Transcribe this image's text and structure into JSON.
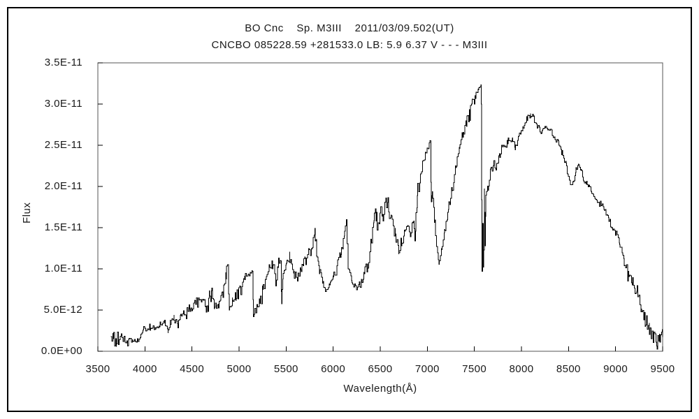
{
  "chart_data": {
    "type": "line",
    "title": "BO Cnc    Sp. M3III    2011/03/09.502(UT)",
    "subtitle": "CNCBO 085228.59 +281533.0 LB: 5.9 6.37 V - - - M3III",
    "xlabel": "Wavelength(Å)",
    "ylabel": "Flux",
    "xlim": [
      3500,
      9500
    ],
    "ylim_e11": [
      0,
      3.5
    ],
    "grid": false,
    "legend": "none",
    "line_color": "#000000",
    "x_ticks": [
      3500,
      4000,
      4500,
      5000,
      5500,
      6000,
      6500,
      7000,
      7500,
      8000,
      8500,
      9000,
      9500
    ],
    "y_ticks": [
      {
        "value_e11": 0.0,
        "label": "0.0E+00"
      },
      {
        "value_e11": 0.5,
        "label": "5.0E-12"
      },
      {
        "value_e11": 1.0,
        "label": "1.0E-11"
      },
      {
        "value_e11": 1.5,
        "label": "1.5E-11"
      },
      {
        "value_e11": 2.0,
        "label": "2.0E-11"
      },
      {
        "value_e11": 2.5,
        "label": "2.5E-11"
      },
      {
        "value_e11": 3.0,
        "label": "3.0E-11"
      },
      {
        "value_e11": 3.5,
        "label": "3.5E-11"
      }
    ],
    "flux_unit_note": "anchor flux and noise amplitude in units of 1e-11, as labeled on the y axis",
    "spectrum_anchors_e11": [
      [
        3638,
        0.16,
        0.14
      ],
      [
        3665,
        0.16,
        0.12
      ],
      [
        3695,
        0.13,
        0.09
      ],
      [
        3725,
        0.16,
        0.09
      ],
      [
        3755,
        0.14,
        0.07
      ],
      [
        3790,
        0.12,
        0.05
      ],
      [
        3815,
        0.08,
        0.06
      ],
      [
        3830,
        0.12,
        0.04
      ],
      [
        3870,
        0.13,
        0.04
      ],
      [
        3910,
        0.13,
        0.03
      ],
      [
        3948,
        0.16,
        0.03
      ],
      [
        3975,
        0.24,
        0.03
      ],
      [
        4010,
        0.27,
        0.03
      ],
      [
        4060,
        0.28,
        0.03
      ],
      [
        4110,
        0.3,
        0.04
      ],
      [
        4160,
        0.33,
        0.04
      ],
      [
        4210,
        0.35,
        0.04
      ],
      [
        4245,
        0.25,
        0.03
      ],
      [
        4270,
        0.36,
        0.04
      ],
      [
        4310,
        0.4,
        0.05
      ],
      [
        4350,
        0.32,
        0.04
      ],
      [
        4380,
        0.44,
        0.05
      ],
      [
        4430,
        0.48,
        0.05
      ],
      [
        4480,
        0.52,
        0.06
      ],
      [
        4530,
        0.58,
        0.06
      ],
      [
        4570,
        0.6,
        0.06
      ],
      [
        4620,
        0.62,
        0.06
      ],
      [
        4650,
        0.52,
        0.05
      ],
      [
        4685,
        0.68,
        0.06
      ],
      [
        4710,
        0.74,
        0.05
      ],
      [
        4740,
        0.54,
        0.05
      ],
      [
        4780,
        0.58,
        0.06
      ],
      [
        4820,
        0.7,
        0.08
      ],
      [
        4860,
        0.95,
        0.08
      ],
      [
        4878,
        1.02,
        0.04
      ],
      [
        4895,
        0.52,
        0.04
      ],
      [
        4930,
        0.6,
        0.07
      ],
      [
        4970,
        0.66,
        0.08
      ],
      [
        5010,
        0.74,
        0.08
      ],
      [
        5060,
        0.88,
        0.07
      ],
      [
        5110,
        0.95,
        0.05
      ],
      [
        5142,
        0.97,
        0.04
      ],
      [
        5152,
        0.45,
        0.04
      ],
      [
        5180,
        0.52,
        0.06
      ],
      [
        5215,
        0.63,
        0.07
      ],
      [
        5250,
        0.75,
        0.08
      ],
      [
        5290,
        0.9,
        0.08
      ],
      [
        5330,
        1.05,
        0.06
      ],
      [
        5360,
        1.08,
        0.06
      ],
      [
        5388,
        0.84,
        0.06
      ],
      [
        5412,
        1.08,
        0.12
      ],
      [
        5440,
        1.02,
        0.08
      ],
      [
        5453,
        0.6,
        0.03
      ],
      [
        5465,
        0.92,
        0.05
      ],
      [
        5500,
        1.05,
        0.06
      ],
      [
        5540,
        1.1,
        0.05
      ],
      [
        5585,
        0.93,
        0.05
      ],
      [
        5620,
        0.89,
        0.04
      ],
      [
        5660,
        1.0,
        0.06
      ],
      [
        5700,
        1.08,
        0.08
      ],
      [
        5745,
        1.2,
        0.09
      ],
      [
        5775,
        1.3,
        0.08
      ],
      [
        5805,
        1.44,
        0.05
      ],
      [
        5825,
        1.18,
        0.05
      ],
      [
        5855,
        0.98,
        0.04
      ],
      [
        5890,
        0.82,
        0.04
      ],
      [
        5930,
        0.73,
        0.03
      ],
      [
        5960,
        0.83,
        0.04
      ],
      [
        6000,
        0.95,
        0.05
      ],
      [
        6040,
        1.05,
        0.05
      ],
      [
        6085,
        1.2,
        0.05
      ],
      [
        6120,
        1.42,
        0.04
      ],
      [
        6138,
        1.58,
        0.03
      ],
      [
        6158,
        1.0,
        0.04
      ],
      [
        6195,
        0.85,
        0.04
      ],
      [
        6245,
        0.76,
        0.04
      ],
      [
        6285,
        0.81,
        0.05
      ],
      [
        6325,
        0.92,
        0.06
      ],
      [
        6365,
        1.05,
        0.07
      ],
      [
        6400,
        1.3,
        0.09
      ],
      [
        6432,
        1.58,
        0.1
      ],
      [
        6455,
        1.65,
        0.1
      ],
      [
        6478,
        1.5,
        0.1
      ],
      [
        6502,
        1.72,
        0.08
      ],
      [
        6525,
        1.63,
        0.08
      ],
      [
        6550,
        1.8,
        0.06
      ],
      [
        6580,
        1.75,
        0.06
      ],
      [
        6615,
        1.6,
        0.07
      ],
      [
        6660,
        1.4,
        0.06
      ],
      [
        6695,
        1.22,
        0.05
      ],
      [
        6730,
        1.33,
        0.06
      ],
      [
        6765,
        1.46,
        0.06
      ],
      [
        6795,
        1.5,
        0.06
      ],
      [
        6818,
        1.42,
        0.05
      ],
      [
        6845,
        1.56,
        0.05
      ],
      [
        6862,
        1.38,
        0.2
      ],
      [
        6875,
        1.5,
        0.12
      ],
      [
        6893,
        1.85,
        0.07
      ],
      [
        6920,
        2.08,
        0.06
      ],
      [
        6950,
        2.26,
        0.05
      ],
      [
        6980,
        2.38,
        0.04
      ],
      [
        7008,
        2.48,
        0.03
      ],
      [
        7028,
        2.55,
        0.02
      ],
      [
        7042,
        1.82,
        0.04
      ],
      [
        7055,
        1.93,
        0.04
      ],
      [
        7075,
        1.6,
        0.04
      ],
      [
        7098,
        1.3,
        0.03
      ],
      [
        7122,
        1.06,
        0.02
      ],
      [
        7150,
        1.23,
        0.03
      ],
      [
        7185,
        1.48,
        0.04
      ],
      [
        7225,
        1.75,
        0.05
      ],
      [
        7265,
        1.98,
        0.05
      ],
      [
        7305,
        2.28,
        0.06
      ],
      [
        7345,
        2.52,
        0.06
      ],
      [
        7385,
        2.66,
        0.06
      ],
      [
        7420,
        2.8,
        0.08
      ],
      [
        7452,
        2.88,
        0.09
      ],
      [
        7482,
        3.0,
        0.08
      ],
      [
        7512,
        3.08,
        0.06
      ],
      [
        7540,
        3.18,
        0.03
      ],
      [
        7568,
        3.22,
        0.02
      ],
      [
        7574,
        3.0,
        0.0
      ],
      [
        7581,
        0.97,
        0.0
      ],
      [
        7589,
        1.55,
        0.0
      ],
      [
        7596,
        1.02,
        0.0
      ],
      [
        7605,
        1.95,
        0.04
      ],
      [
        7613,
        1.28,
        0.0
      ],
      [
        7622,
        1.88,
        0.04
      ],
      [
        7638,
        2.02,
        0.04
      ],
      [
        7652,
        1.97,
        0.04
      ],
      [
        7668,
        2.18,
        0.05
      ],
      [
        7705,
        2.28,
        0.05
      ],
      [
        7725,
        2.22,
        0.05
      ],
      [
        7765,
        2.38,
        0.05
      ],
      [
        7805,
        2.46,
        0.05
      ],
      [
        7855,
        2.54,
        0.05
      ],
      [
        7905,
        2.57,
        0.05
      ],
      [
        7935,
        2.47,
        0.04
      ],
      [
        7975,
        2.62,
        0.04
      ],
      [
        8015,
        2.73,
        0.04
      ],
      [
        8055,
        2.82,
        0.04
      ],
      [
        8095,
        2.87,
        0.03
      ],
      [
        8135,
        2.82,
        0.04
      ],
      [
        8175,
        2.72,
        0.04
      ],
      [
        8215,
        2.65,
        0.04
      ],
      [
        8255,
        2.71,
        0.04
      ],
      [
        8295,
        2.7,
        0.03
      ],
      [
        8335,
        2.63,
        0.03
      ],
      [
        8385,
        2.55,
        0.03
      ],
      [
        8435,
        2.4,
        0.04
      ],
      [
        8475,
        2.25,
        0.04
      ],
      [
        8515,
        2.06,
        0.04
      ],
      [
        8545,
        2.03,
        0.03
      ],
      [
        8575,
        2.18,
        0.04
      ],
      [
        8605,
        2.28,
        0.03
      ],
      [
        8635,
        2.2,
        0.03
      ],
      [
        8662,
        2.07,
        0.03
      ],
      [
        8695,
        2.04,
        0.03
      ],
      [
        8725,
        1.99,
        0.03
      ],
      [
        8765,
        1.88,
        0.03
      ],
      [
        8805,
        1.83,
        0.03
      ],
      [
        8845,
        1.8,
        0.03
      ],
      [
        8885,
        1.7,
        0.04
      ],
      [
        8925,
        1.6,
        0.04
      ],
      [
        8965,
        1.5,
        0.04
      ],
      [
        9000,
        1.44,
        0.04
      ],
      [
        9045,
        1.3,
        0.05
      ],
      [
        9090,
        1.1,
        0.05
      ],
      [
        9135,
        0.95,
        0.06
      ],
      [
        9180,
        0.8,
        0.06
      ],
      [
        9225,
        0.68,
        0.07
      ],
      [
        9270,
        0.5,
        0.08
      ],
      [
        9315,
        0.38,
        0.09
      ],
      [
        9360,
        0.26,
        0.1
      ],
      [
        9400,
        0.17,
        0.1
      ],
      [
        9440,
        0.1,
        0.09
      ],
      [
        9470,
        0.1,
        0.11
      ],
      [
        9500,
        0.14,
        0.13
      ]
    ]
  }
}
